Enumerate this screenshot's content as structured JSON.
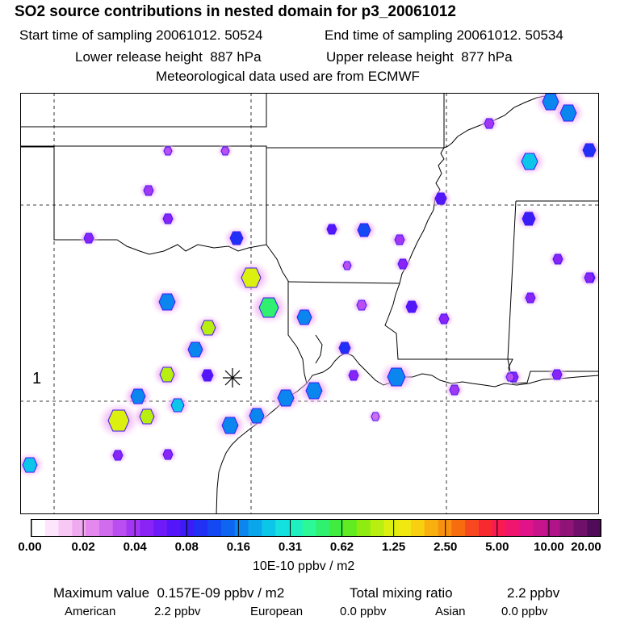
{
  "header": {
    "title": "SO2 source contributions in nested domain for p3_20061012",
    "start_time": "Start time of sampling 20061012. 50524",
    "end_time": "End time of sampling 20061012. 50534",
    "lower_height": "Lower release height  887 hPa",
    "upper_height": "Upper release height  877 hPa",
    "met_data": "Meteorological data used are from ECMWF"
  },
  "map": {
    "site_label": "1",
    "site_marker_icon": "asterisk-icon",
    "color_scale": [
      "#ffffff",
      "#fde6fb",
      "#f7c8f4",
      "#efaaf0",
      "#e488ee",
      "#d06ced",
      "#bb4ef0",
      "#a336f3",
      "#8a24f6",
      "#6f1af8",
      "#5416f9",
      "#3a1cf6",
      "#2030f5",
      "#1448f2",
      "#0e66f0",
      "#0a86ee",
      "#0aa6ec",
      "#0cc6ea",
      "#14e0e0",
      "#1ef0c0",
      "#2cf898",
      "#30f070",
      "#40ec40",
      "#60ec20",
      "#90ec10",
      "#b8ee10",
      "#dcf010",
      "#f0e810",
      "#f8d010",
      "#f8b010",
      "#f89010",
      "#f86c10",
      "#f84820",
      "#f82a30",
      "#f81a50",
      "#f01670",
      "#e01488",
      "#c8148c",
      "#b01488",
      "#901478",
      "#70106a",
      "#500c58"
    ]
  },
  "legend": {
    "ticks": [
      "0.00",
      "0.02",
      "0.04",
      "0.08",
      "0.16",
      "0.31",
      "0.62",
      "1.25",
      "2.50",
      "5.00",
      "10.00",
      "20.00"
    ],
    "unit": "10E-10 ppbv / m2"
  },
  "footer": {
    "max_label": "Maximum value  0.157E-09 ppbv / m2",
    "total_label": "Total mixing ratio",
    "total_value": "2.2 ppbv",
    "american_label": "American",
    "american_value": "2.2 ppbv",
    "european_label": "European",
    "european_value": "0.0 ppbv",
    "asian_label": "Asian",
    "asian_value": "0.0 ppbv"
  }
}
